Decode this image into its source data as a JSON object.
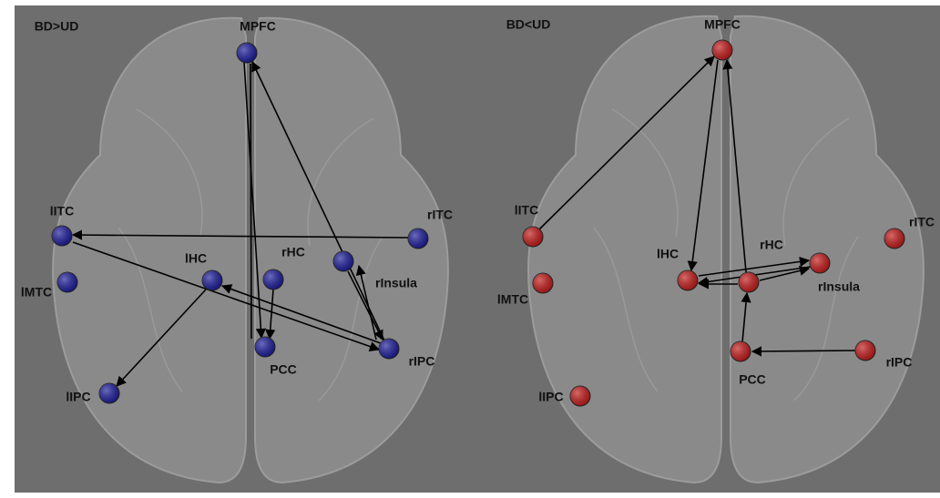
{
  "panels": [
    {
      "title": "BD>UD",
      "color": "#1c1c9a",
      "nodes": [
        {
          "label": "MPFC"
        },
        {
          "label": "lITC"
        },
        {
          "label": "lMTC"
        },
        {
          "label": "lHC"
        },
        {
          "label": "rHC"
        },
        {
          "label": "rInsula"
        },
        {
          "label": "rITC"
        },
        {
          "label": "rIPC"
        },
        {
          "label": "PCC"
        },
        {
          "label": "lIPC"
        }
      ]
    },
    {
      "title": "BD<UD",
      "color": "#c21a1a",
      "nodes": [
        {
          "label": "MPFC"
        },
        {
          "label": "lITC"
        },
        {
          "label": "lMTC"
        },
        {
          "label": "lHC"
        },
        {
          "label": "rHC"
        },
        {
          "label": "rInsula"
        },
        {
          "label": "rITC"
        },
        {
          "label": "rIPC"
        },
        {
          "label": "PCC"
        },
        {
          "label": "lIPC"
        }
      ]
    }
  ]
}
